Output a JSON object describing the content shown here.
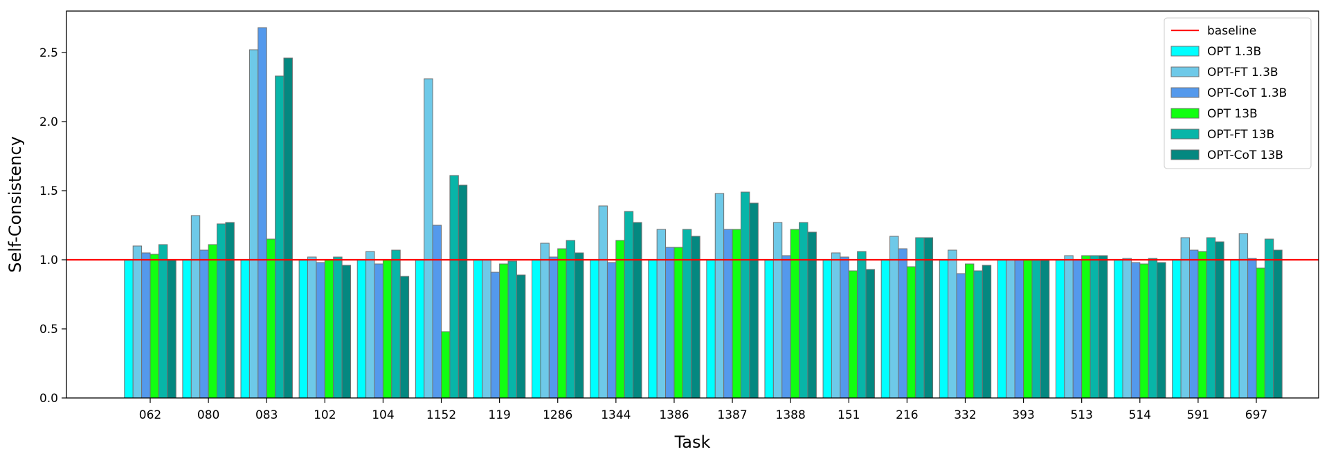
{
  "chart_data": {
    "type": "bar",
    "xlabel": "Task",
    "ylabel": "Self-Consistency",
    "ylim": [
      0,
      2.8
    ],
    "yticks": [
      "0.0",
      "0.5",
      "1.0",
      "1.5",
      "2.0",
      "2.5"
    ],
    "categories": [
      "062",
      "080",
      "083",
      "102",
      "104",
      "1152",
      "119",
      "1286",
      "1344",
      "1386",
      "1387",
      "1388",
      "151",
      "216",
      "332",
      "393",
      "513",
      "514",
      "591",
      "697"
    ],
    "baseline": {
      "name": "baseline",
      "value": 1.0,
      "color": "#ff0000"
    },
    "legend_position": "top-right",
    "grid": false,
    "series": [
      {
        "name": "OPT 1.3B",
        "color": "#00ffff",
        "values": [
          1.0,
          1.0,
          1.0,
          1.0,
          1.0,
          1.0,
          1.0,
          1.0,
          1.0,
          1.0,
          1.0,
          1.0,
          1.0,
          1.0,
          1.0,
          1.0,
          1.0,
          1.0,
          1.0,
          1.0
        ]
      },
      {
        "name": "OPT-FT 1.3B",
        "color": "#6ec9e8",
        "values": [
          1.1,
          1.32,
          2.52,
          1.02,
          1.06,
          2.31,
          1.0,
          1.12,
          1.39,
          1.22,
          1.48,
          1.27,
          1.05,
          1.17,
          1.07,
          1.0,
          1.03,
          1.01,
          1.16,
          1.19
        ]
      },
      {
        "name": "OPT-CoT 1.3B",
        "color": "#5499ec",
        "values": [
          1.05,
          1.07,
          2.68,
          0.98,
          0.97,
          1.25,
          0.91,
          1.02,
          0.98,
          1.09,
          1.22,
          1.03,
          1.02,
          1.08,
          0.9,
          1.0,
          1.0,
          0.98,
          1.07,
          1.01
        ]
      },
      {
        "name": "OPT 13B",
        "color": "#11ff11",
        "values": [
          1.04,
          1.11,
          1.15,
          1.0,
          1.0,
          0.48,
          0.97,
          1.08,
          1.14,
          1.09,
          1.22,
          1.22,
          0.92,
          0.95,
          0.97,
          1.0,
          1.03,
          0.97,
          1.06,
          0.94
        ]
      },
      {
        "name": "OPT-FT 13B",
        "color": "#08b5a8",
        "values": [
          1.11,
          1.26,
          2.33,
          1.02,
          1.07,
          1.61,
          0.99,
          1.14,
          1.35,
          1.22,
          1.49,
          1.27,
          1.06,
          1.16,
          0.92,
          1.0,
          1.03,
          1.01,
          1.16,
          1.15
        ]
      },
      {
        "name": "OPT-CoT 13B",
        "color": "#048880",
        "values": [
          1.0,
          1.27,
          2.46,
          0.96,
          0.88,
          1.54,
          0.89,
          1.05,
          1.27,
          1.17,
          1.41,
          1.2,
          0.93,
          1.16,
          0.96,
          1.0,
          1.03,
          0.98,
          1.13,
          1.07
        ]
      }
    ]
  }
}
